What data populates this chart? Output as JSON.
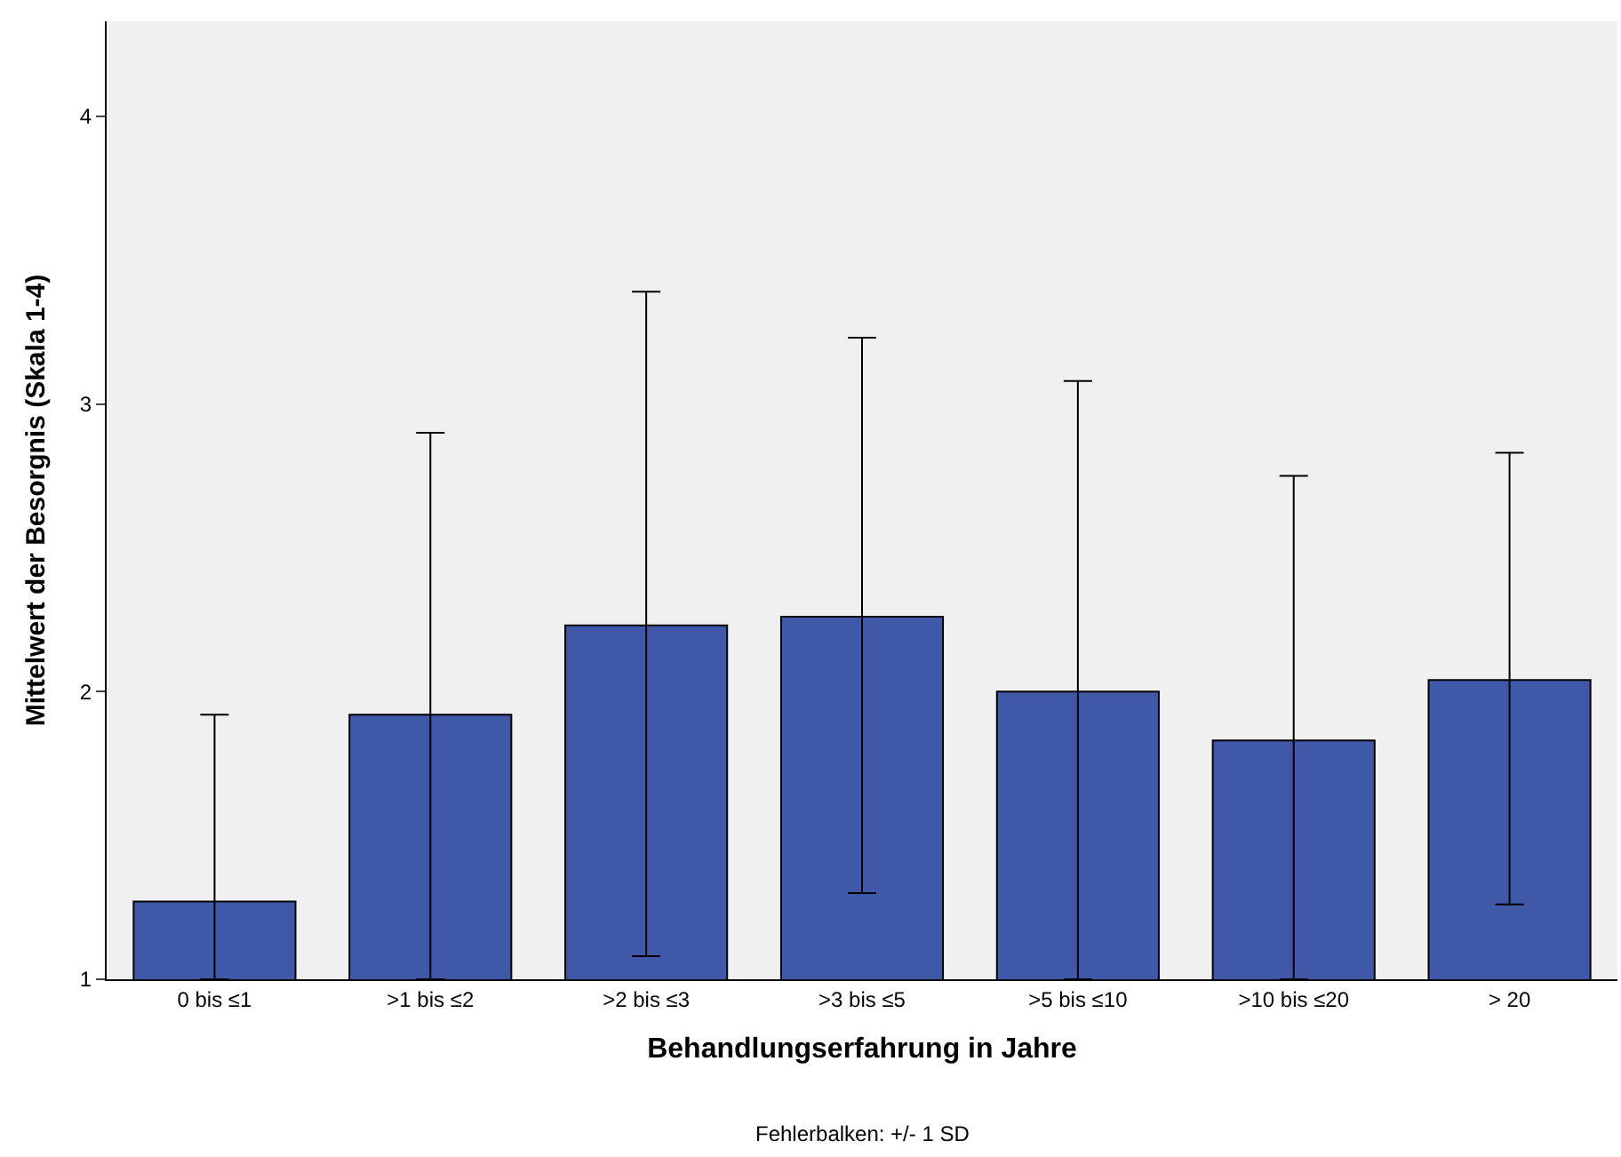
{
  "chart_data": {
    "type": "bar",
    "xlabel": "Behandlungserfahrung in Jahre",
    "ylabel": "Mittelwert der Besorgnis (Skala 1-4)",
    "categories": [
      "0 bis ≤1",
      ">1 bis ≤2",
      ">2 bis ≤3",
      ">3 bis ≤5",
      ">5 bis ≤10",
      ">10 bis ≤20",
      "> 20"
    ],
    "values": [
      1.27,
      1.92,
      2.23,
      2.26,
      2.0,
      1.83,
      2.04
    ],
    "errors": [
      [
        1,
        1.92
      ],
      [
        1,
        2.9
      ],
      [
        1.08,
        3.39
      ],
      [
        1.3,
        3.23
      ],
      [
        1,
        3.08
      ],
      [
        1,
        2.75
      ],
      [
        1.26,
        2.83
      ]
    ],
    "color": "#3f58a8",
    "ylim": [
      1,
      4.33
    ],
    "yticks": [
      1,
      2,
      3,
      4
    ],
    "grid": false,
    "legend": false,
    "annotations": [
      "Fehlerbalken: +/- 1 SD"
    ]
  }
}
